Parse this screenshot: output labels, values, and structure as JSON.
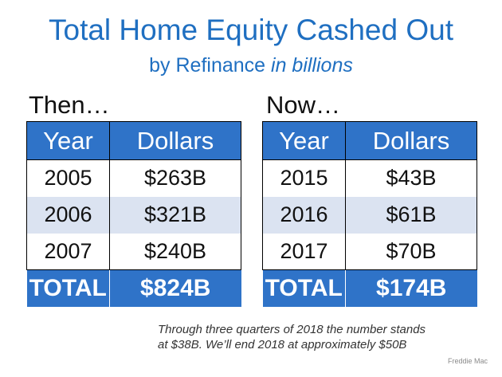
{
  "title": "Total Home Equity Cashed Out",
  "subtitle": {
    "main": "by Refinance ",
    "emphasis": "in billions"
  },
  "tables": {
    "then": {
      "heading": "Then…",
      "columns": [
        "Year",
        "Dollars"
      ],
      "rows": [
        [
          "2005",
          "$263B"
        ],
        [
          "2006",
          "$321B"
        ],
        [
          "2007",
          "$240B"
        ]
      ],
      "total": [
        "TOTAL",
        "$824B"
      ]
    },
    "now": {
      "heading": "Now…",
      "columns": [
        "Year",
        "Dollars"
      ],
      "rows": [
        [
          "2015",
          "$43B"
        ],
        [
          "2016",
          "$61B"
        ],
        [
          "2017",
          "$70B"
        ]
      ],
      "total": [
        "TOTAL",
        "$174B"
      ]
    }
  },
  "note": [
    "Through three quarters of 2018 the number stands",
    "at $38B. We’ll end 2018 at approximately $50B"
  ],
  "source": "Freddie Mac",
  "colors": {
    "title": "#1f6fc1",
    "header_fill": "#2f73c8",
    "alt_row": "#dbe3f1"
  }
}
